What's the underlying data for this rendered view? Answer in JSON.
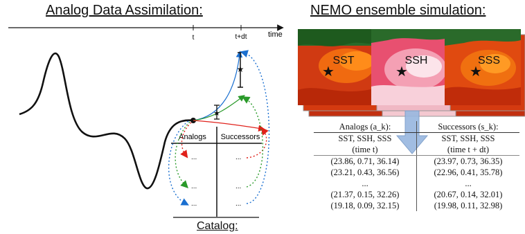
{
  "left_title": "Analog Data Assimilation:",
  "right_title": "NEMO ensemble simulation:",
  "timeline": {
    "t": "t",
    "tdt": "t+dt",
    "time": "time"
  },
  "catalog": {
    "analogs": "Analogs",
    "successors": "Successors",
    "ellipsis": "...",
    "title": "Catalog:"
  },
  "maps": [
    {
      "label": "SST",
      "colors": [
        "#d43a10",
        "#f06a10",
        "#ff8c1a",
        "#2a7a2a"
      ]
    },
    {
      "label": "SSH",
      "colors": [
        "#e85070",
        "#f8c8d4",
        "#ffffff",
        "#2a7a2a"
      ]
    },
    {
      "label": "SSS",
      "colors": [
        "#d43a10",
        "#f06a10",
        "#ff8c1a",
        "#2a7a2a"
      ]
    }
  ],
  "table": {
    "header_left": "Analogs (a_k):",
    "header_right": "Successors (s_k):",
    "sub_left_1": "SST, SSH, SSS",
    "sub_left_2": "(time t)",
    "sub_right_1": "SST, SSH, SSS",
    "sub_right_2": "(time t + dt)",
    "rows": [
      [
        "(23.86, 0.71, 36.14)",
        "(23.97, 0.73, 36.35)"
      ],
      [
        "(23.21, 0.43, 36.56)",
        "(22.96, 0.41, 35.78)"
      ],
      [
        "...",
        "..."
      ],
      [
        "(21.37, 0.15, 32.26)",
        "(20.67, 0.14, 32.01)"
      ],
      [
        "(19.18, 0.09, 32.15)",
        "(19.98, 0.11, 32.98)"
      ]
    ]
  },
  "colors": {
    "blue": "#1a6fd0",
    "green": "#2a9a2a",
    "red": "#e0201a",
    "arrow": "#9ab8e0"
  }
}
